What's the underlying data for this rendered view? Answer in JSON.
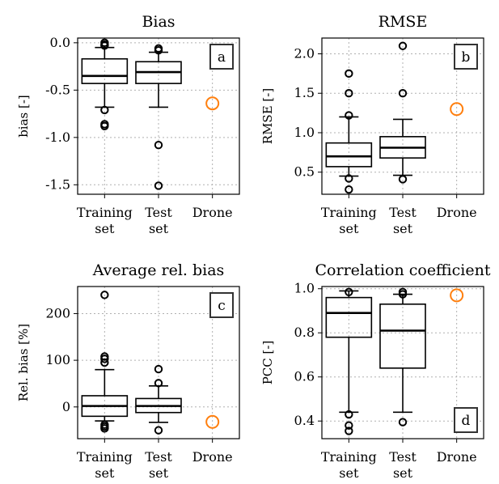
{
  "chart_data": [
    {
      "type": "box",
      "id": "a",
      "title": "Bias",
      "ylabel": "bias [-]",
      "ylim": [
        -1.6,
        0.05
      ],
      "yticks": [
        0.0,
        -0.5,
        -1.0,
        -1.5
      ],
      "ytick_labels": [
        "0.0",
        "-0.5",
        "-1.0",
        "-1.5"
      ],
      "panel_label": "a",
      "panel_label_position": "top-right",
      "grid": true,
      "categories": [
        [
          "Training",
          "set"
        ],
        [
          "Test",
          "set"
        ],
        [
          "Drone",
          ""
        ]
      ],
      "boxes": [
        {
          "q1": -0.43,
          "median": -0.35,
          "q3": -0.17,
          "whisker_low": -0.68,
          "whisker_high": -0.05,
          "outliers": [
            0.0,
            -0.02,
            -0.03,
            -0.71,
            -0.86,
            -0.88
          ]
        },
        {
          "q1": -0.43,
          "median": -0.31,
          "q3": -0.2,
          "whisker_low": -0.68,
          "whisker_high": -0.1,
          "outliers": [
            -0.06,
            -0.08,
            -1.08,
            -1.51
          ]
        }
      ],
      "drone_value": -0.64
    },
    {
      "type": "box",
      "id": "b",
      "title": "RMSE",
      "ylabel": "RMSE [-]",
      "ylim": [
        0.22,
        2.2
      ],
      "yticks": [
        0.5,
        1.0,
        1.5,
        2.0
      ],
      "ytick_labels": [
        "0.5",
        "1.0",
        "1.5",
        "2.0"
      ],
      "panel_label": "b",
      "panel_label_position": "top-right",
      "grid": true,
      "categories": [
        [
          "Training",
          "set"
        ],
        [
          "Test",
          "set"
        ],
        [
          "Drone",
          ""
        ]
      ],
      "boxes": [
        {
          "q1": 0.57,
          "median": 0.7,
          "q3": 0.87,
          "whisker_low": 0.45,
          "whisker_high": 1.2,
          "outliers": [
            0.42,
            0.28,
            1.22,
            1.5,
            1.75
          ]
        },
        {
          "q1": 0.68,
          "median": 0.81,
          "q3": 0.95,
          "whisker_low": 0.46,
          "whisker_high": 1.17,
          "outliers": [
            0.41,
            1.5,
            2.1
          ]
        }
      ],
      "drone_value": 1.3
    },
    {
      "type": "box",
      "id": "c",
      "title": "Average rel. bias",
      "ylabel": "Rel. bias [%]",
      "ylim": [
        -68,
        258
      ],
      "yticks": [
        0,
        100,
        200
      ],
      "ytick_labels": [
        "0",
        "100",
        "200"
      ],
      "panel_label": "c",
      "panel_label_position": "top-right",
      "grid": true,
      "categories": [
        [
          "Training",
          "set"
        ],
        [
          "Test",
          "set"
        ],
        [
          "Drone",
          ""
        ]
      ],
      "boxes": [
        {
          "q1": -20,
          "median": 2,
          "q3": 24,
          "whisker_low": -30,
          "whisker_high": 80,
          "outliers": [
            -38,
            -42,
            -46,
            95,
            103,
            108,
            240
          ]
        },
        {
          "q1": -12,
          "median": 2,
          "q3": 18,
          "whisker_low": -33,
          "whisker_high": 45,
          "outliers": [
            -50,
            51,
            81
          ]
        }
      ],
      "drone_value": -32
    },
    {
      "type": "box",
      "id": "d",
      "title": "Correlation coefficient",
      "ylabel": "PCC [-]",
      "ylim": [
        0.32,
        1.01
      ],
      "yticks": [
        0.4,
        0.6,
        0.8,
        1.0
      ],
      "ytick_labels": [
        "0.4",
        "0.6",
        "0.8",
        "1.0"
      ],
      "panel_label": "d",
      "panel_label_position": "bottom-right",
      "grid": true,
      "categories": [
        [
          "Training",
          "set"
        ],
        [
          "Test",
          "set"
        ],
        [
          "Drone",
          ""
        ]
      ],
      "boxes": [
        {
          "q1": 0.78,
          "median": 0.89,
          "q3": 0.96,
          "whisker_low": 0.44,
          "whisker_high": 0.99,
          "outliers": [
            0.985,
            0.43,
            0.38,
            0.355
          ]
        },
        {
          "q1": 0.64,
          "median": 0.81,
          "q3": 0.93,
          "whisker_low": 0.44,
          "whisker_high": 0.975,
          "outliers": [
            0.985,
            0.975,
            0.395
          ]
        }
      ],
      "drone_value": 0.97
    }
  ],
  "colors": {
    "box": "#000000",
    "drone_marker": "#ff7f0e",
    "grid": "#b0b0b0",
    "background": "#ffffff"
  }
}
